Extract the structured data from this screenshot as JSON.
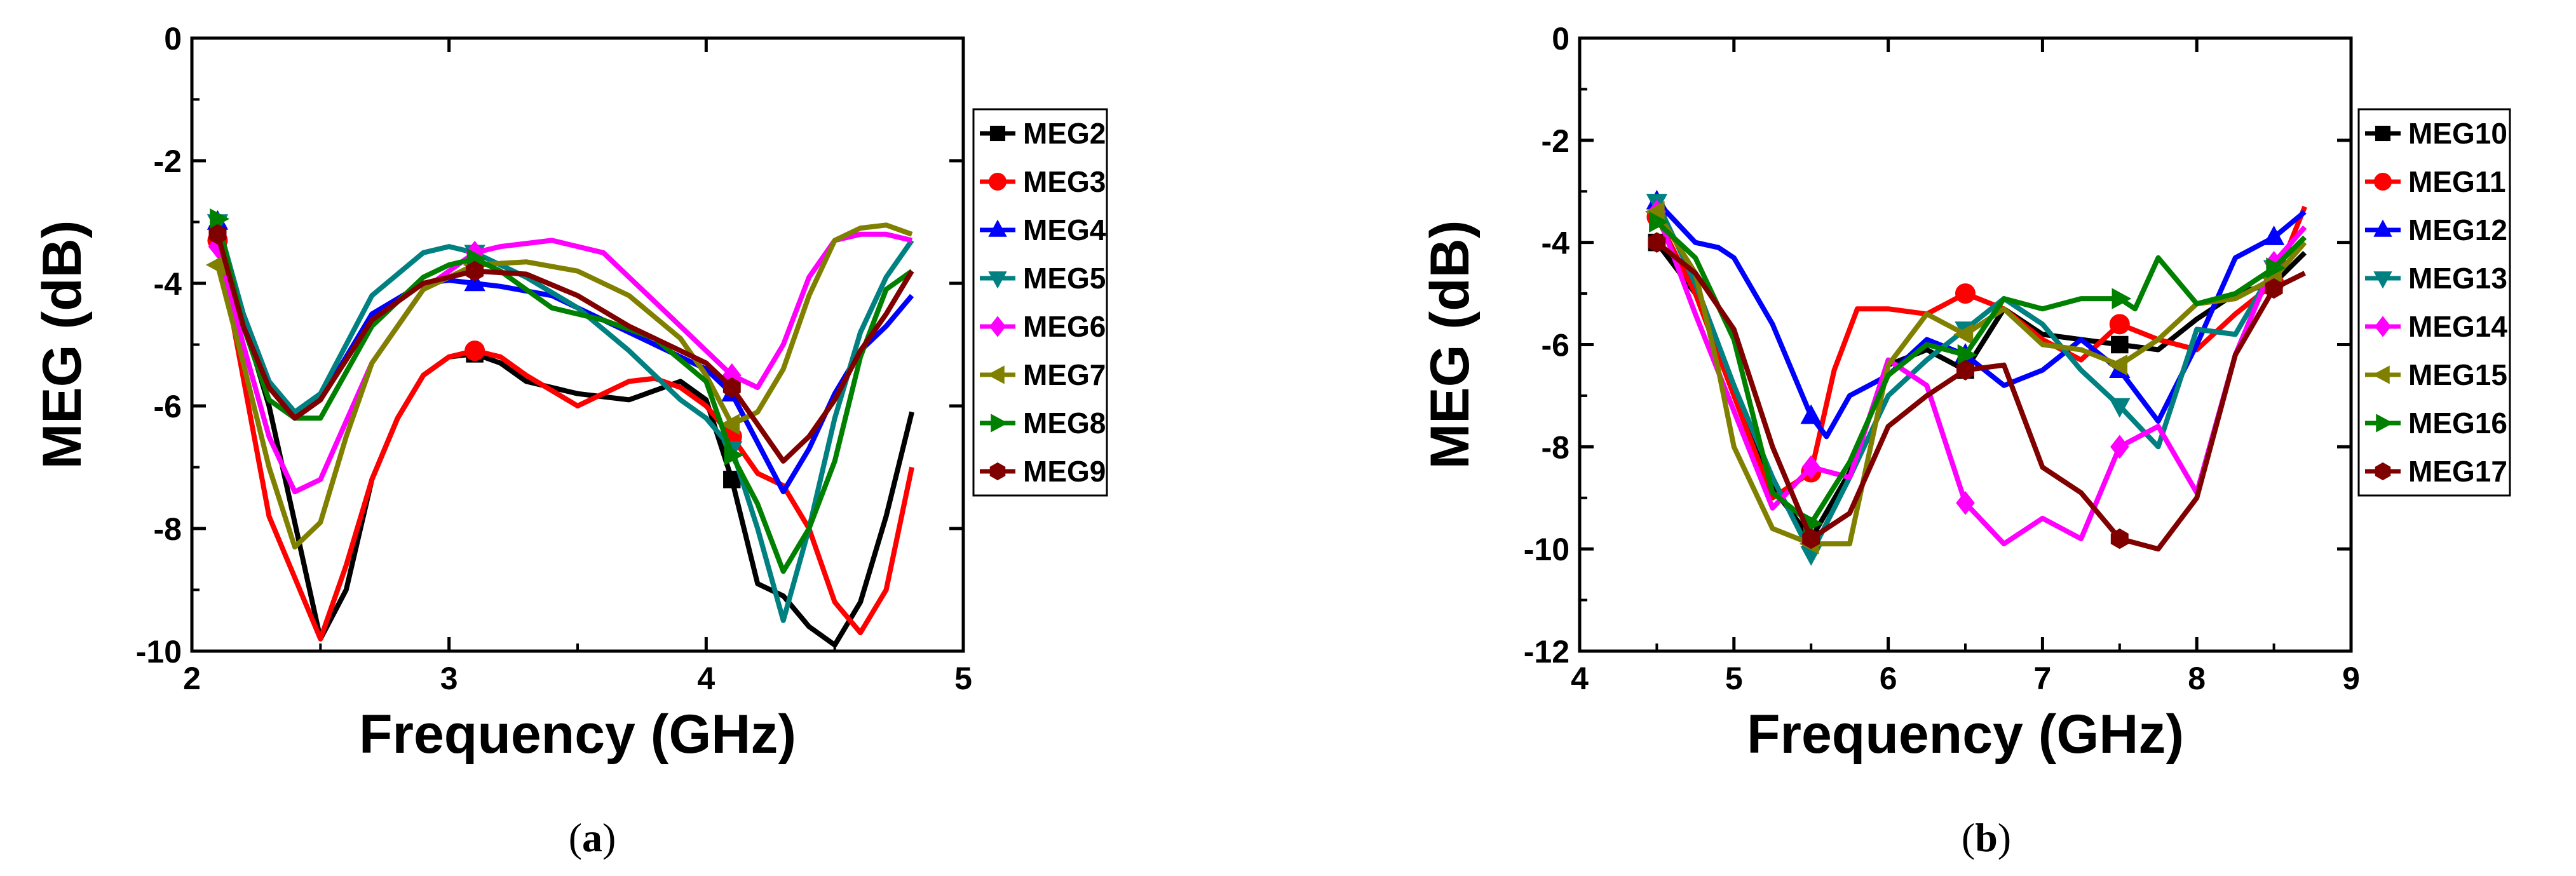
{
  "chart_data": [
    {
      "type": "line",
      "panel_label": "a",
      "title": "",
      "xlabel": "Frequency (GHz)",
      "ylabel": "MEG (dB)",
      "xlim": [
        2,
        5
      ],
      "ylim": [
        -10,
        0
      ],
      "xticks": [
        2,
        3,
        4,
        5
      ],
      "yticks": [
        0,
        -2,
        -4,
        -6,
        -8,
        -10
      ],
      "legend": "right-outside",
      "grid": false,
      "series": [
        {
          "name": "MEG2",
          "color": "#000000",
          "marker": "square",
          "x": [
            2.1,
            2.3,
            2.5,
            2.6,
            2.7,
            2.8,
            2.9,
            3.0,
            3.1,
            3.2,
            3.3,
            3.5,
            3.7,
            3.9,
            4.0,
            4.1,
            4.2,
            4.3,
            4.4,
            4.5,
            4.6,
            4.7,
            4.8
          ],
          "y": [
            -3.2,
            -6.0,
            -9.8,
            -9.0,
            -7.2,
            -6.2,
            -5.5,
            -5.2,
            -5.15,
            -5.3,
            -5.6,
            -5.8,
            -5.9,
            -5.6,
            -5.9,
            -7.2,
            -8.9,
            -9.1,
            -9.6,
            -9.9,
            -9.2,
            -7.8,
            -6.1
          ],
          "markers_x": [
            2.1,
            3.1,
            4.1
          ]
        },
        {
          "name": "MEG3",
          "color": "#ff0000",
          "marker": "circle",
          "x": [
            2.1,
            2.3,
            2.5,
            2.6,
            2.7,
            2.8,
            2.9,
            3.0,
            3.1,
            3.2,
            3.3,
            3.5,
            3.7,
            3.8,
            3.9,
            4.0,
            4.1,
            4.2,
            4.3,
            4.4,
            4.5,
            4.6,
            4.7,
            4.8
          ],
          "y": [
            -3.3,
            -7.8,
            -9.8,
            -8.6,
            -7.2,
            -6.2,
            -5.5,
            -5.2,
            -5.1,
            -5.2,
            -5.5,
            -6.0,
            -5.6,
            -5.55,
            -5.7,
            -6.0,
            -6.5,
            -7.1,
            -7.3,
            -8.0,
            -9.2,
            -9.7,
            -9.0,
            -7.0
          ],
          "markers_x": [
            2.1,
            3.1,
            4.1
          ]
        },
        {
          "name": "MEG4",
          "color": "#0000ff",
          "marker": "triangle-up",
          "x": [
            2.1,
            2.2,
            2.3,
            2.4,
            2.5,
            2.7,
            2.9,
            3.0,
            3.1,
            3.2,
            3.4,
            3.6,
            3.8,
            4.0,
            4.1,
            4.2,
            4.3,
            4.4,
            4.5,
            4.6,
            4.7,
            4.8
          ],
          "y": [
            -3.0,
            -4.5,
            -5.6,
            -6.2,
            -5.9,
            -4.5,
            -4.0,
            -3.95,
            -4.0,
            -4.05,
            -4.2,
            -4.6,
            -5.0,
            -5.4,
            -5.8,
            -6.6,
            -7.4,
            -6.7,
            -5.8,
            -5.1,
            -4.7,
            -4.2
          ],
          "markers_x": [
            2.1,
            3.1,
            4.1
          ]
        },
        {
          "name": "MEG5",
          "color": "#008080",
          "marker": "triangle-down",
          "x": [
            2.1,
            2.2,
            2.3,
            2.4,
            2.5,
            2.7,
            2.9,
            3.0,
            3.1,
            3.3,
            3.5,
            3.7,
            3.9,
            4.0,
            4.1,
            4.2,
            4.3,
            4.4,
            4.5,
            4.6,
            4.7,
            4.8
          ],
          "y": [
            -3.0,
            -4.5,
            -5.6,
            -6.1,
            -5.8,
            -4.2,
            -3.5,
            -3.4,
            -3.5,
            -3.9,
            -4.4,
            -5.1,
            -5.9,
            -6.2,
            -6.7,
            -8.0,
            -9.5,
            -8.0,
            -6.2,
            -4.8,
            -3.9,
            -3.3
          ],
          "markers_x": [
            2.1,
            3.1,
            4.1
          ]
        },
        {
          "name": "MEG6",
          "color": "#ff00ff",
          "marker": "diamond",
          "x": [
            2.1,
            2.2,
            2.3,
            2.4,
            2.5,
            2.7,
            2.9,
            3.0,
            3.1,
            3.2,
            3.4,
            3.6,
            3.8,
            4.0,
            4.1,
            4.2,
            4.3,
            4.4,
            4.5,
            4.6,
            4.7,
            4.8
          ],
          "y": [
            -3.4,
            -5.0,
            -6.5,
            -7.4,
            -7.2,
            -5.3,
            -4.1,
            -3.8,
            -3.5,
            -3.4,
            -3.3,
            -3.5,
            -4.3,
            -5.1,
            -5.5,
            -5.7,
            -5.0,
            -3.9,
            -3.3,
            -3.2,
            -3.2,
            -3.3
          ],
          "markers_x": [
            2.1,
            3.1,
            4.1
          ]
        },
        {
          "name": "MEG7",
          "color": "#808000",
          "marker": "triangle-left",
          "x": [
            2.1,
            2.2,
            2.3,
            2.4,
            2.5,
            2.6,
            2.7,
            2.9,
            3.1,
            3.3,
            3.5,
            3.7,
            3.9,
            4.0,
            4.1,
            4.2,
            4.3,
            4.4,
            4.5,
            4.6,
            4.7,
            4.8
          ],
          "y": [
            -3.7,
            -5.3,
            -7.0,
            -8.3,
            -7.9,
            -6.5,
            -5.3,
            -4.1,
            -3.7,
            -3.65,
            -3.8,
            -4.2,
            -4.9,
            -5.5,
            -6.3,
            -6.1,
            -5.4,
            -4.2,
            -3.3,
            -3.1,
            -3.05,
            -3.2
          ],
          "markers_x": [
            2.1,
            3.1,
            4.1
          ]
        },
        {
          "name": "MEG8",
          "color": "#008000",
          "marker": "triangle-right",
          "x": [
            2.1,
            2.2,
            2.3,
            2.4,
            2.5,
            2.7,
            2.9,
            3.0,
            3.1,
            3.2,
            3.4,
            3.6,
            3.8,
            4.0,
            4.1,
            4.2,
            4.3,
            4.4,
            4.5,
            4.6,
            4.7,
            4.8
          ],
          "y": [
            -2.95,
            -4.7,
            -5.9,
            -6.2,
            -6.2,
            -4.7,
            -3.9,
            -3.7,
            -3.6,
            -3.8,
            -4.4,
            -4.6,
            -4.9,
            -5.6,
            -6.8,
            -7.6,
            -8.7,
            -8.0,
            -6.9,
            -5.2,
            -4.1,
            -3.8
          ],
          "markers_x": [
            2.1,
            3.1,
            4.1
          ]
        },
        {
          "name": "MEG9",
          "color": "#800000",
          "marker": "hexagon",
          "x": [
            2.1,
            2.2,
            2.3,
            2.4,
            2.5,
            2.7,
            2.9,
            3.1,
            3.3,
            3.5,
            3.7,
            3.9,
            4.0,
            4.1,
            4.2,
            4.3,
            4.4,
            4.5,
            4.6,
            4.7,
            4.8
          ],
          "y": [
            -3.2,
            -4.7,
            -5.7,
            -6.2,
            -5.9,
            -4.6,
            -4.0,
            -3.8,
            -3.85,
            -4.2,
            -4.7,
            -5.1,
            -5.3,
            -5.7,
            -6.3,
            -6.9,
            -6.5,
            -5.9,
            -5.1,
            -4.5,
            -3.8
          ],
          "markers_x": [
            2.1,
            3.1,
            4.1
          ]
        }
      ]
    },
    {
      "type": "line",
      "panel_label": "b",
      "title": "",
      "xlabel": "Frequency (GHz)",
      "ylabel": "MEG (dB)",
      "xlim": [
        4,
        9
      ],
      "ylim": [
        -12,
        0
      ],
      "xticks": [
        4,
        5,
        6,
        7,
        8,
        9
      ],
      "yticks": [
        0,
        -2,
        -4,
        -6,
        -8,
        -10,
        -12
      ],
      "legend": "right-outside",
      "grid": false,
      "series": [
        {
          "name": "MEG10",
          "color": "#000000",
          "marker": "square",
          "x": [
            4.5,
            4.75,
            5.0,
            5.25,
            5.5,
            5.75,
            6.0,
            6.25,
            6.5,
            6.75,
            7.0,
            7.25,
            7.5,
            7.75,
            8.0,
            8.25,
            8.5,
            8.7
          ],
          "y": [
            -4.0,
            -5.0,
            -6.8,
            -8.8,
            -9.8,
            -8.5,
            -6.4,
            -6.1,
            -6.5,
            -5.3,
            -5.8,
            -5.9,
            -6.0,
            -6.1,
            -5.5,
            -5.0,
            -4.8,
            -4.2
          ],
          "markers_x": [
            4.5,
            5.5,
            6.5,
            7.5,
            8.5
          ]
        },
        {
          "name": "MEG11",
          "color": "#ff0000",
          "marker": "circle",
          "x": [
            4.5,
            4.75,
            5.0,
            5.25,
            5.5,
            5.65,
            5.8,
            6.0,
            6.25,
            6.5,
            6.75,
            7.0,
            7.25,
            7.5,
            7.75,
            8.0,
            8.25,
            8.5,
            8.7
          ],
          "y": [
            -3.5,
            -5.0,
            -7.0,
            -9.0,
            -8.5,
            -6.5,
            -5.3,
            -5.3,
            -5.4,
            -5.0,
            -5.3,
            -5.9,
            -6.3,
            -5.6,
            -5.9,
            -6.1,
            -5.4,
            -4.8,
            -3.3
          ],
          "markers_x": [
            4.5,
            5.5,
            6.5,
            7.5,
            8.5
          ]
        },
        {
          "name": "MEG12",
          "color": "#0000ff",
          "marker": "triangle-up",
          "x": [
            4.5,
            4.75,
            4.9,
            5.0,
            5.25,
            5.5,
            5.6,
            5.75,
            6.0,
            6.25,
            6.5,
            6.75,
            7.0,
            7.25,
            7.5,
            7.75,
            8.0,
            8.25,
            8.5,
            8.7
          ],
          "y": [
            -3.2,
            -4.0,
            -4.1,
            -4.3,
            -5.6,
            -7.4,
            -7.8,
            -7.0,
            -6.6,
            -5.9,
            -6.2,
            -6.8,
            -6.5,
            -5.9,
            -6.5,
            -7.5,
            -6.0,
            -4.3,
            -3.9,
            -3.4
          ],
          "markers_x": [
            4.5,
            5.5,
            6.5,
            7.5,
            8.5
          ]
        },
        {
          "name": "MEG13",
          "color": "#008080",
          "marker": "triangle-down",
          "x": [
            4.5,
            4.75,
            5.0,
            5.25,
            5.5,
            5.75,
            6.0,
            6.25,
            6.5,
            6.75,
            7.0,
            7.25,
            7.5,
            7.75,
            8.0,
            8.25,
            8.5,
            8.7
          ],
          "y": [
            -3.2,
            -4.8,
            -6.8,
            -8.6,
            -10.1,
            -8.6,
            -7.0,
            -6.3,
            -5.7,
            -5.1,
            -5.6,
            -6.5,
            -7.2,
            -8.0,
            -5.7,
            -5.8,
            -4.5,
            -3.9
          ],
          "markers_x": [
            4.5,
            5.5,
            6.5,
            7.5,
            8.5
          ]
        },
        {
          "name": "MEG14",
          "color": "#ff00ff",
          "marker": "diamond",
          "x": [
            4.5,
            4.75,
            5.0,
            5.25,
            5.5,
            5.75,
            6.0,
            6.25,
            6.5,
            6.75,
            7.0,
            7.25,
            7.5,
            7.75,
            8.0,
            8.25,
            8.5,
            8.7
          ],
          "y": [
            -3.4,
            -5.4,
            -7.3,
            -9.2,
            -8.4,
            -8.6,
            -6.3,
            -6.8,
            -9.1,
            -9.9,
            -9.4,
            -9.8,
            -8.0,
            -7.6,
            -8.9,
            -6.2,
            -4.4,
            -3.7
          ],
          "markers_x": [
            4.5,
            5.5,
            6.5,
            7.5,
            8.5
          ]
        },
        {
          "name": "MEG15",
          "color": "#808000",
          "marker": "triangle-left",
          "x": [
            4.5,
            4.75,
            4.9,
            5.0,
            5.25,
            5.5,
            5.75,
            6.0,
            6.25,
            6.5,
            6.75,
            7.0,
            7.25,
            7.5,
            7.75,
            8.0,
            8.25,
            8.5,
            8.7
          ],
          "y": [
            -3.4,
            -4.6,
            -6.5,
            -8.0,
            -9.6,
            -9.9,
            -9.9,
            -6.4,
            -5.4,
            -5.8,
            -5.3,
            -6.0,
            -6.1,
            -6.4,
            -5.9,
            -5.2,
            -5.1,
            -4.7,
            -4.0
          ],
          "markers_x": [
            4.5,
            5.5,
            6.5,
            7.5,
            8.5
          ]
        },
        {
          "name": "MEG16",
          "color": "#008000",
          "marker": "triangle-right",
          "x": [
            4.5,
            4.75,
            5.0,
            5.25,
            5.5,
            5.75,
            6.0,
            6.25,
            6.5,
            6.75,
            7.0,
            7.25,
            7.5,
            7.6,
            7.75,
            8.0,
            8.25,
            8.5,
            8.7
          ],
          "y": [
            -3.6,
            -4.3,
            -5.9,
            -8.9,
            -9.5,
            -8.3,
            -6.6,
            -6.0,
            -6.2,
            -5.1,
            -5.3,
            -5.1,
            -5.1,
            -5.3,
            -4.3,
            -5.2,
            -5.0,
            -4.5,
            -3.9
          ],
          "markers_x": [
            4.5,
            5.5,
            6.5,
            7.5,
            8.5
          ]
        },
        {
          "name": "MEG17",
          "color": "#800000",
          "marker": "hexagon",
          "x": [
            4.5,
            4.75,
            5.0,
            5.25,
            5.5,
            5.75,
            6.0,
            6.25,
            6.5,
            6.75,
            7.0,
            7.25,
            7.5,
            7.75,
            8.0,
            8.25,
            8.5,
            8.7
          ],
          "y": [
            -4.0,
            -4.6,
            -5.7,
            -8.0,
            -9.8,
            -9.3,
            -7.6,
            -7.0,
            -6.5,
            -6.4,
            -8.4,
            -8.9,
            -9.8,
            -10.0,
            -9.0,
            -6.2,
            -4.9,
            -4.6
          ],
          "markers_x": [
            4.5,
            5.5,
            6.5,
            7.5,
            8.5
          ]
        }
      ]
    }
  ]
}
